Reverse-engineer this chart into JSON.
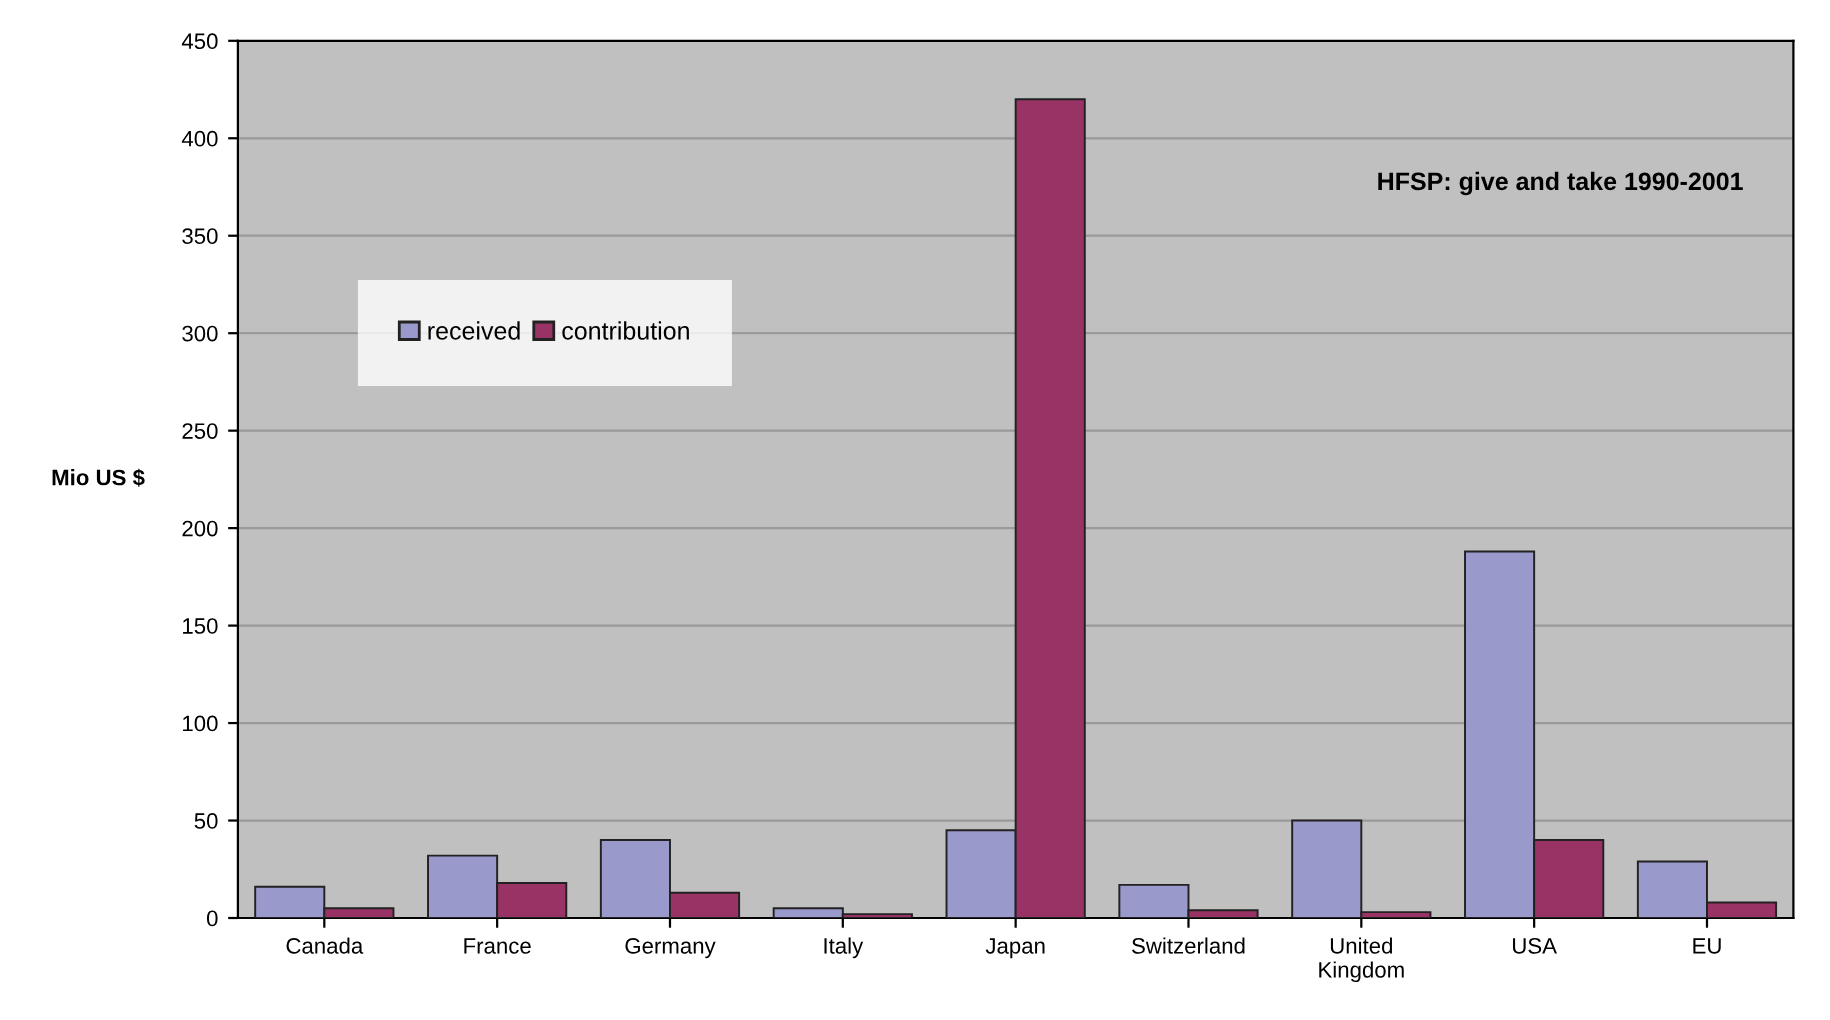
{
  "chart_data": {
    "type": "bar",
    "ylabel": "Mio US $",
    "annotations": [
      "HFSP: give and take 1990-2001"
    ],
    "categories": [
      "Canada",
      "France",
      "Germany",
      "Italy",
      "Japan",
      "Switzerland",
      "United\nKingdom",
      "USA",
      "EU"
    ],
    "series": [
      {
        "name": "received",
        "color": "#9999cc",
        "values": [
          16,
          32,
          40,
          5,
          45,
          17,
          50,
          188,
          29
        ]
      },
      {
        "name": "contribution",
        "color": "#993366",
        "values": [
          5,
          18,
          13,
          2,
          420,
          4,
          3,
          40,
          8
        ]
      }
    ],
    "ylim": [
      0,
      450
    ],
    "yticks": [
      0,
      50,
      100,
      150,
      200,
      250,
      300,
      350,
      400,
      450
    ],
    "grid": "y",
    "legend": "top left"
  }
}
